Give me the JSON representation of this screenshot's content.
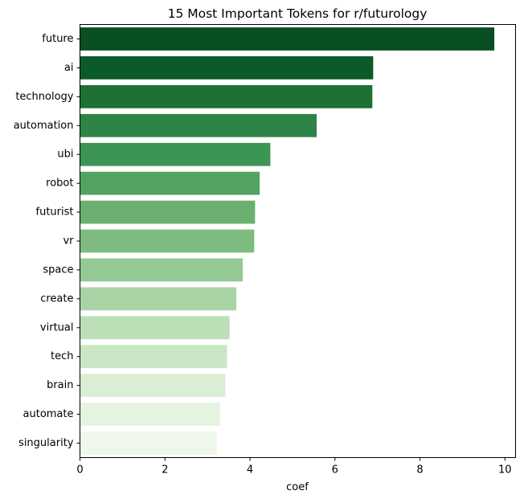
{
  "chart_data": {
    "type": "bar",
    "orientation": "horizontal",
    "title": "15 Most Important Tokens for r/futurology",
    "xlabel": "coef",
    "ylabel": "",
    "xlim": [
      0,
      10.25
    ],
    "x_ticks": [
      0,
      2,
      4,
      6,
      8,
      10
    ],
    "grid": false,
    "categories": [
      "future",
      "ai",
      "technology",
      "automation",
      "ubi",
      "robot",
      "futurist",
      "vr",
      "space",
      "create",
      "virtual",
      "tech",
      "brain",
      "automate",
      "singularity"
    ],
    "values": [
      9.75,
      6.9,
      6.88,
      5.57,
      4.48,
      4.23,
      4.12,
      4.1,
      3.83,
      3.68,
      3.52,
      3.46,
      3.42,
      3.3,
      3.22
    ],
    "colors": [
      "#0a4e24",
      "#0b5a2a",
      "#1e7034",
      "#2e8446",
      "#3b9553",
      "#52a362",
      "#6aaf6f",
      "#7dbb7e",
      "#94c894",
      "#a9d4a6",
      "#bddfb8",
      "#cbe6c6",
      "#d9eed4",
      "#e5f4e1",
      "#eef7ea"
    ]
  }
}
